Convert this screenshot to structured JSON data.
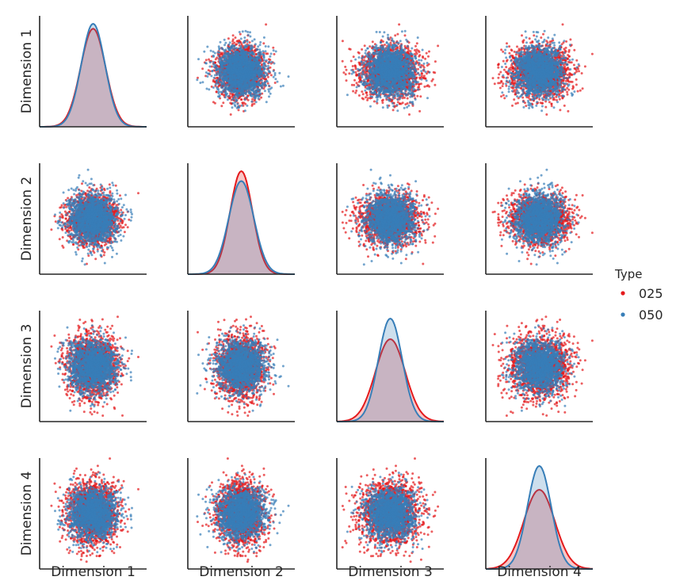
{
  "chart_data": {
    "type": "scatter",
    "subtype": "pairplot",
    "variables": [
      "Dimension 1",
      "Dimension 2",
      "Dimension 3",
      "Dimension 4"
    ],
    "diagonal": "kde",
    "offdiagonal": "scatter",
    "grid": false,
    "ticks": false,
    "legend": {
      "title": "Type",
      "placement": "right-center",
      "entries": [
        {
          "name": "025",
          "color": "#e41a1c"
        },
        {
          "name": "050",
          "color": "#377eb8"
        }
      ]
    },
    "series": [
      {
        "name": "025",
        "color": "#e41a1c",
        "mean": [
          0,
          0,
          0,
          0
        ],
        "std": [
          1.05,
          0.95,
          1.25,
          1.3
        ],
        "points_approx": 4000
      },
      {
        "name": "050",
        "color": "#377eb8",
        "mean": [
          0,
          0,
          0,
          0
        ],
        "std": [
          1.0,
          1.05,
          1.0,
          1.0
        ],
        "points_approx": 4000
      }
    ],
    "axis_range": [
      -4.5,
      4.5
    ]
  }
}
